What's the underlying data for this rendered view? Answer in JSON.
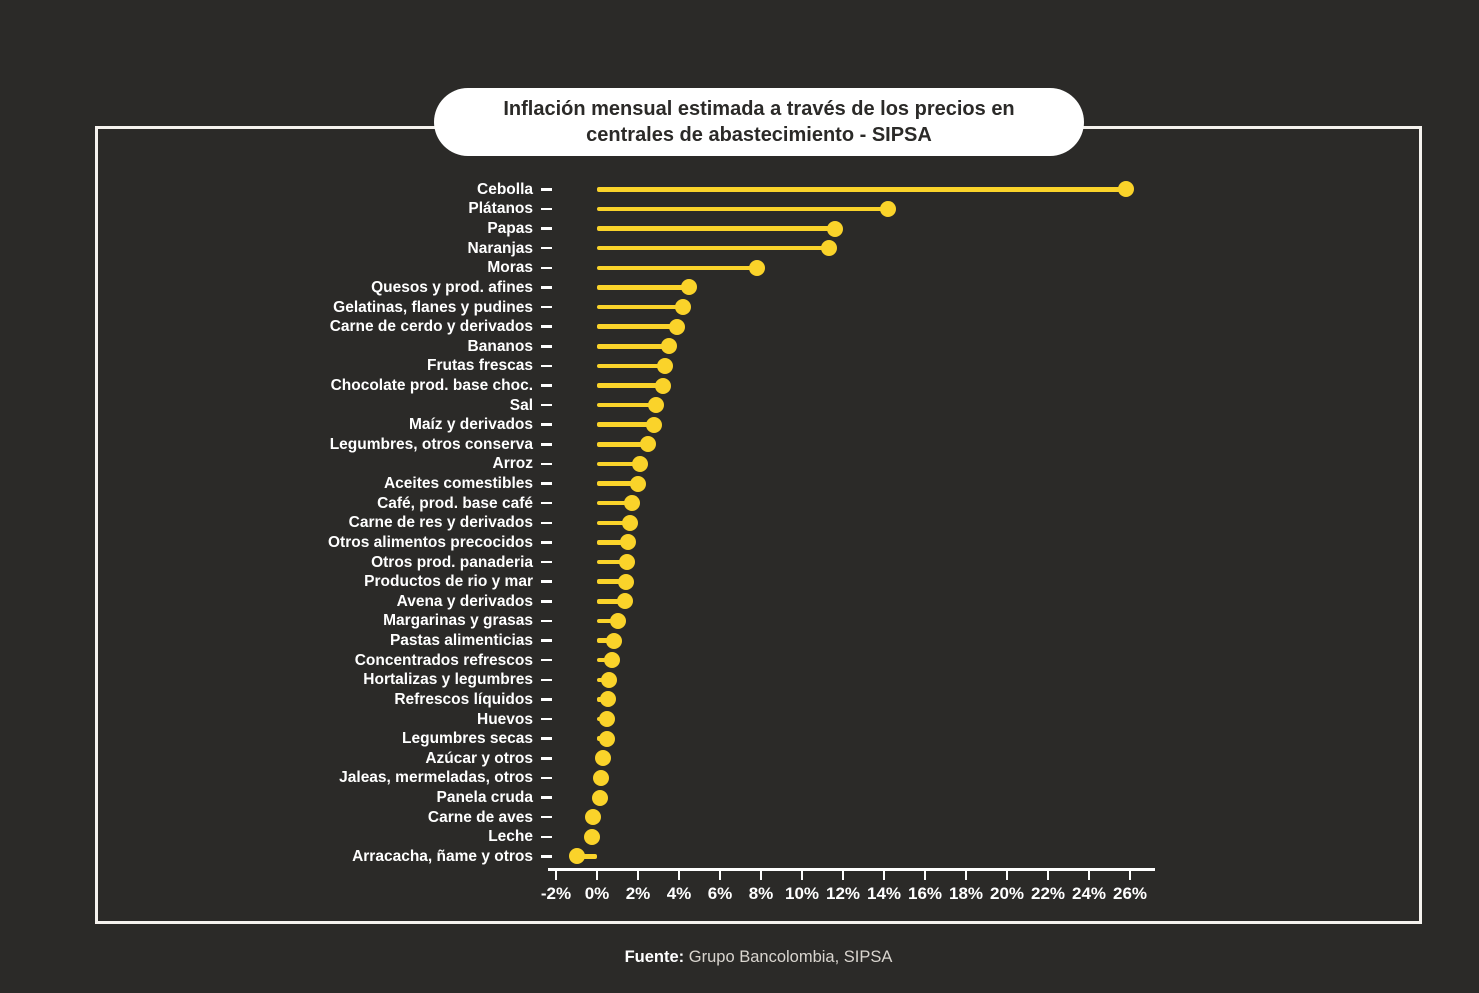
{
  "title": "Inflación mensual estimada a través de los precios en centrales de abastecimiento - SIPSA",
  "source": {
    "label": "Fuente:",
    "text": " Grupo Bancolombia, SIPSA"
  },
  "colors": {
    "background": "#2B2A28",
    "accent": "#FAD32A",
    "text": "#FFFFFF",
    "muted_text": "#D9D5CF",
    "frame_border": "#F5F2EE",
    "title_pill_bg": "#FFFFFF",
    "title_pill_text": "#2B2A28"
  },
  "chart_data": {
    "type": "bar",
    "subtype": "lollipop",
    "orientation": "horizontal",
    "title": "Inflación mensual estimada a través de los precios en centrales de abastecimiento - SIPSA",
    "xlabel": "",
    "ylabel": "",
    "xlim": [
      -2.4,
      27.2
    ],
    "grid": false,
    "legend": false,
    "unit": "%",
    "categories": [
      "Cebolla",
      "Plátanos",
      "Papas",
      "Naranjas",
      "Moras",
      "Quesos y prod. afines",
      "Gelatinas, flanes y pudines",
      "Carne de cerdo y derivados",
      "Bananos",
      "Frutas frescas",
      "Chocolate prod. base choc.",
      "Sal",
      "Maíz y derivados",
      "Legumbres, otros conserva",
      "Arroz",
      "Aceites comestibles",
      "Café, prod. base café",
      "Carne de res y derivados",
      "Otros alimentos precocidos",
      "Otros prod. panaderia",
      "Productos de rio y mar",
      "Avena y derivados",
      "Margarinas y grasas",
      "Pastas alimenticias",
      "Concentrados refrescos",
      "Hortalizas y legumbres",
      "Refrescos líquidos",
      "Huevos",
      "Legumbres secas",
      "Azúcar y otros",
      "Jaleas, mermeladas, otros",
      "Panela cruda",
      "Carne de aves",
      "Leche",
      "Arracacha, ñame y otros"
    ],
    "values": [
      25.8,
      14.2,
      11.6,
      11.3,
      7.8,
      4.5,
      4.2,
      3.9,
      3.5,
      3.3,
      3.2,
      2.9,
      2.8,
      2.5,
      2.1,
      2.0,
      1.7,
      1.6,
      1.5,
      1.45,
      1.4,
      1.35,
      1.0,
      0.85,
      0.75,
      0.6,
      0.55,
      0.5,
      0.5,
      0.3,
      0.2,
      0.15,
      -0.2,
      -0.25,
      -1.0
    ],
    "x_ticks": [
      -2,
      0,
      2,
      4,
      6,
      8,
      10,
      12,
      14,
      16,
      18,
      20,
      22,
      24,
      26
    ],
    "x_tick_labels": [
      "-2%",
      "0%",
      "2%",
      "4%",
      "6%",
      "8%",
      "10%",
      "12%",
      "14%",
      "16%",
      "18%",
      "20%",
      "22%",
      "24%",
      "26%"
    ]
  }
}
